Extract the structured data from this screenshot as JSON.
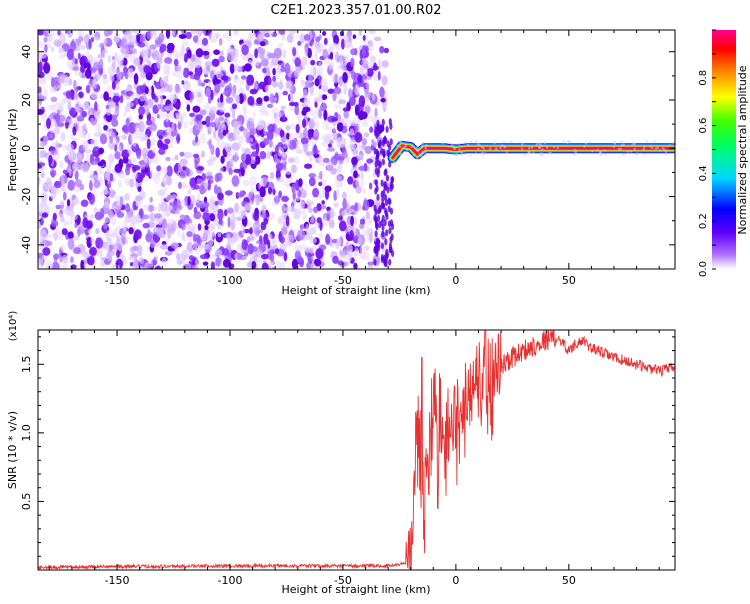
{
  "title": "C2E1.2023.357.01.00.R02",
  "colors": {
    "spectrogram_main": "#7a00ff",
    "ridge": "#ff2020",
    "snr_line": "#e83030",
    "axes": "#000000"
  },
  "chart_data": [
    {
      "type": "heatmap",
      "xlabel": "Height of straight line (km)",
      "ylabel": "Frequency (Hz)",
      "xlim": [
        -185,
        97
      ],
      "ylim": [
        -50,
        49
      ],
      "x_ticks": [
        -150,
        -100,
        -50,
        0,
        50
      ],
      "x_tick_labels": [
        "-150",
        "-100",
        "-50",
        "0",
        "50"
      ],
      "y_ticks": [
        -40,
        -20,
        0,
        20,
        40
      ],
      "y_tick_labels": [
        "-40",
        "-20",
        "0",
        "20",
        "40"
      ],
      "noise_region_x": [
        -185,
        -30
      ],
      "signal_ridge": {
        "x_start": -28,
        "x_end": 97,
        "frequency": 0,
        "amplitude": 1.0,
        "wiggle": [
          [
            -28,
            -4
          ],
          [
            -24,
            1
          ],
          [
            -20,
            0.5
          ],
          [
            -17,
            -2.5
          ],
          [
            -14,
            0
          ],
          [
            -10,
            0
          ],
          [
            -5,
            0
          ],
          [
            0,
            -0.5
          ],
          [
            5,
            0
          ],
          [
            10,
            0
          ],
          [
            97,
            0
          ]
        ]
      },
      "colorbar": {
        "label": "Normalized spectral amplitude",
        "range": [
          0,
          1
        ],
        "ticks": [
          0,
          0.2,
          0.4,
          0.6,
          0.8
        ],
        "tick_labels": [
          "0.0",
          "0.2",
          "0.4",
          "0.6",
          "0.8"
        ],
        "colormap": [
          "#ffffff",
          "#a000ff",
          "#0000ff",
          "#00ffff",
          "#00ff00",
          "#ffff00",
          "#ff0000",
          "#ff00a0"
        ]
      },
      "grid": false
    },
    {
      "type": "line",
      "xlabel": "Height of straight line (km)",
      "ylabel": "SNR (10 * v/v)",
      "y_scale_note": "(x10⁴)",
      "xlim": [
        -185,
        97
      ],
      "ylim": [
        0,
        1.75
      ],
      "x_ticks": [
        -150,
        -100,
        -50,
        0,
        50
      ],
      "x_tick_labels": [
        "-150",
        "-100",
        "-50",
        "0",
        "50"
      ],
      "y_ticks": [
        0.5,
        1.0,
        1.5
      ],
      "y_tick_labels": [
        "0.5",
        "1.0",
        "1.5"
      ],
      "series": [
        {
          "color": "#e83030",
          "envelope_points": [
            [
              -185,
              0.02
            ],
            [
              -150,
              0.025
            ],
            [
              -100,
              0.03
            ],
            [
              -60,
              0.03
            ],
            [
              -30,
              0.03
            ],
            [
              -22,
              0.05
            ],
            [
              -19,
              0.3
            ],
            [
              -18,
              1.2
            ],
            [
              -16,
              1.0
            ],
            [
              -14,
              0.6
            ],
            [
              -10,
              1.3
            ],
            [
              -5,
              1.05
            ],
            [
              0,
              1.1
            ],
            [
              5,
              1.3
            ],
            [
              10,
              1.45
            ],
            [
              15,
              1.45
            ],
            [
              20,
              1.5
            ],
            [
              30,
              1.6
            ],
            [
              40,
              1.68
            ],
            [
              45,
              1.7
            ],
            [
              50,
              1.6
            ],
            [
              55,
              1.68
            ],
            [
              60,
              1.62
            ],
            [
              70,
              1.55
            ],
            [
              80,
              1.5
            ],
            [
              90,
              1.45
            ],
            [
              97,
              1.48
            ]
          ],
          "spikes": [
            [
              -15,
              1.55
            ],
            [
              13,
              1.78
            ],
            [
              -12,
              0.55
            ],
            [
              -8,
              0.45
            ]
          ]
        }
      ],
      "grid": false
    }
  ]
}
